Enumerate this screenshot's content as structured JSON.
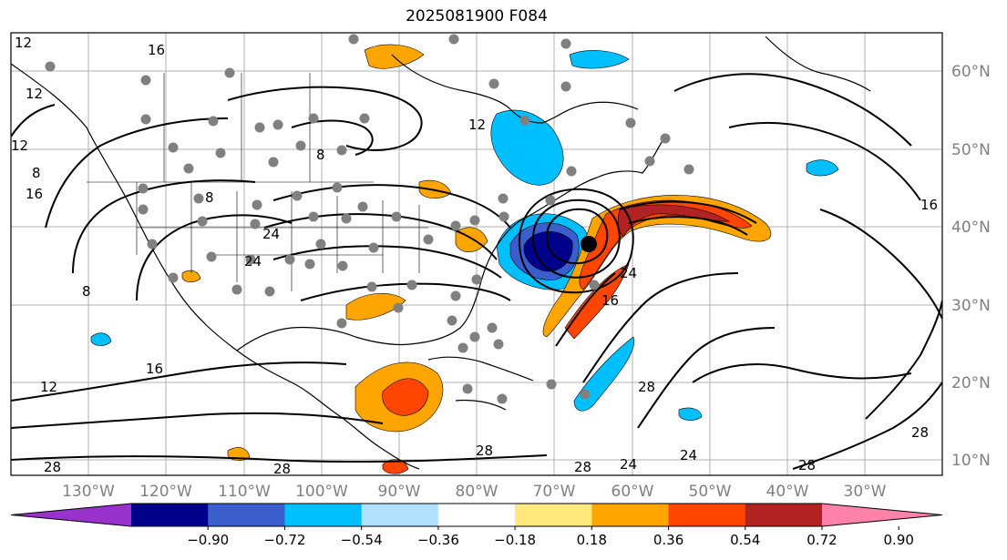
{
  "title": "2025081900 F084",
  "map": {
    "lon_labels": [
      "130°W",
      "120°W",
      "110°W",
      "100°W",
      "90°W",
      "80°W",
      "70°W",
      "60°W",
      "50°W",
      "40°W",
      "30°W"
    ],
    "lat_labels": [
      "60°N",
      "50°N",
      "40°N",
      "30°N",
      "20°N",
      "10°N"
    ],
    "contour_labels": [
      "12",
      "16",
      "12",
      "8",
      "16",
      "12",
      "28",
      "28",
      "8",
      "24",
      "24",
      "8",
      "12",
      "8",
      "16",
      "24",
      "28",
      "28",
      "24",
      "24",
      "28",
      "28",
      "16",
      "28",
      "12",
      "16"
    ],
    "colors": {
      "land_outline": "#000000",
      "grid": "#b0b0b0",
      "station": "#808080",
      "low_center": "#000000"
    }
  },
  "colorbar": {
    "ticks": [
      "−0.90",
      "−0.72",
      "−0.54",
      "−0.36",
      "−0.18",
      "0.18",
      "0.36",
      "0.54",
      "0.72",
      "0.90"
    ],
    "colors": [
      "#9932cc",
      "#00008b",
      "#3a5fcd",
      "#00bfff",
      "#b0e2ff",
      "#ffffff",
      "#ffe87c",
      "#ffa500",
      "#ff4500",
      "#b22222",
      "#ff82ab"
    ]
  }
}
